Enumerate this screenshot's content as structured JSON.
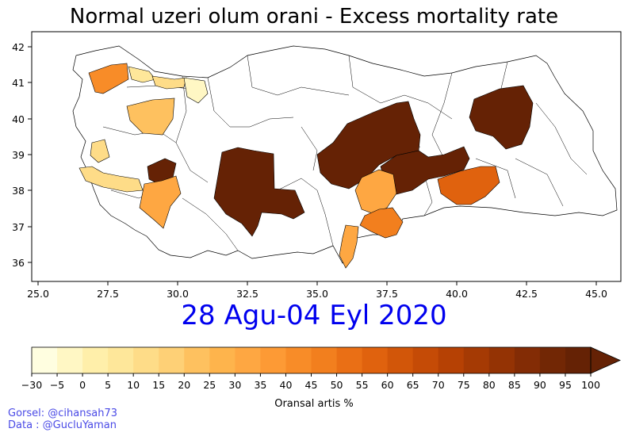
{
  "title": "Normal uzeri olum orani - Excess mortality rate",
  "date_label": "28 Agu-04 Eyl 2020",
  "colorbar": {
    "label": "Oransal artis %",
    "ticks": [
      "−30",
      "−5",
      "0",
      "5",
      "10",
      "15",
      "20",
      "25",
      "30",
      "35",
      "40",
      "45",
      "50",
      "55",
      "60",
      "65",
      "70",
      "75",
      "80",
      "85",
      "90",
      "95",
      "100"
    ],
    "colors": [
      "#fffee0",
      "#fff7c4",
      "#ffefaa",
      "#fee79a",
      "#fedc88",
      "#fed076",
      "#fec15f",
      "#feb44c",
      "#fea742",
      "#fd9a35",
      "#f88c28",
      "#f27f1e",
      "#ea6f15",
      "#e0620e",
      "#d25609",
      "#c54b06",
      "#b64104",
      "#a53a04",
      "#943304",
      "#832c05",
      "#722705",
      "#652205"
    ]
  },
  "axes": {
    "x_ticks": [
      "25.0",
      "27.5",
      "30.0",
      "32.5",
      "35.0",
      "37.5",
      "40.0",
      "42.5",
      "45.0"
    ],
    "y_ticks": [
      "42",
      "41",
      "40",
      "39",
      "38",
      "37",
      "36"
    ]
  },
  "credits": {
    "line1": "Gorsel: @cihansah73",
    "line2": "Data  : @GucluYaman"
  }
}
